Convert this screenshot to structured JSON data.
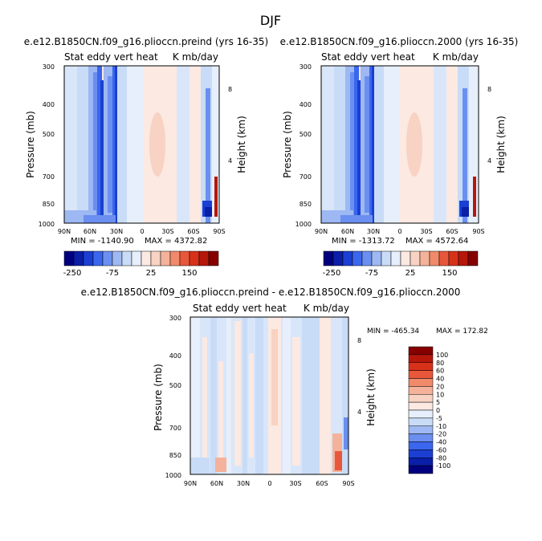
{
  "figure": {
    "title": "DJF"
  },
  "colors": {
    "neg": [
      "#00007f",
      "#0a1ea8",
      "#1b3fd2",
      "#3b66ee",
      "#6a8ff0",
      "#9db8f2",
      "#c9dcf7",
      "#e6effb"
    ],
    "pos": [
      "#fbe9e2",
      "#f8d2c2",
      "#f4b29a",
      "#f08a6b",
      "#e9573a",
      "#d8311a",
      "#b5170b",
      "#860000"
    ]
  },
  "top_colorbar": {
    "labels": [
      "-250",
      "-75",
      "25",
      "150"
    ]
  },
  "bottom_colorbar": {
    "labels": [
      "100",
      "80",
      "60",
      "40",
      "20",
      "10",
      "5",
      "0",
      "-5",
      "-10",
      "-20",
      "-40",
      "-60",
      "-80",
      "-100"
    ]
  },
  "chart_data": [
    {
      "type": "heatmap",
      "title": "e.e12.B1850CN.f09_g16.plioccn.preind (yrs 16-35)",
      "left_string": "Stat eddy vert heat",
      "right_string": "K mb/day",
      "ylabel": "Pressure (mb)",
      "y2label": "Height (km)",
      "x_ticks": [
        "90N",
        "60N",
        "30N",
        "0",
        "30S",
        "60S",
        "90S"
      ],
      "y_ticks": [
        "300",
        "400",
        "500",
        "700",
        "850",
        "1000"
      ],
      "y2_ticks": [
        "8",
        "4"
      ],
      "ylim": [
        1000,
        300
      ],
      "min_text": "MIN = -1140.90",
      "max_text": "MAX = 4372.82",
      "min": -1140.9,
      "max": 4372.82
    },
    {
      "type": "heatmap",
      "title": "e.e12.B1850CN.f09_g16.plioccn.2000 (yrs 16-35)",
      "left_string": "Stat eddy vert heat",
      "right_string": "K mb/day",
      "ylabel": "Pressure (mb)",
      "y2label": "Height (km)",
      "x_ticks": [
        "90N",
        "60N",
        "30N",
        "0",
        "30S",
        "60S",
        "90S"
      ],
      "y_ticks": [
        "300",
        "400",
        "500",
        "700",
        "850",
        "1000"
      ],
      "y2_ticks": [
        "8",
        "4"
      ],
      "ylim": [
        1000,
        300
      ],
      "min_text": "MIN = -1313.72",
      "max_text": "MAX = 4572.64",
      "min": -1313.72,
      "max": 4572.64
    },
    {
      "type": "heatmap",
      "title": "e.e12.B1850CN.f09_g16.plioccn.preind - e.e12.B1850CN.f09_g16.plioccn.2000",
      "left_string": "Stat eddy vert heat",
      "right_string": "K mb/day",
      "ylabel": "Pressure (mb)",
      "y2label": "Height (km)",
      "x_ticks": [
        "90N",
        "60N",
        "30N",
        "0",
        "30S",
        "60S",
        "90S"
      ],
      "y_ticks": [
        "300",
        "400",
        "500",
        "700",
        "850",
        "1000"
      ],
      "y2_ticks": [
        "8",
        "4"
      ],
      "ylim": [
        1000,
        300
      ],
      "min_text": "MIN = -465.34",
      "max_text": "MAX = 172.82",
      "min": -465.34,
      "max": 172.82
    }
  ]
}
